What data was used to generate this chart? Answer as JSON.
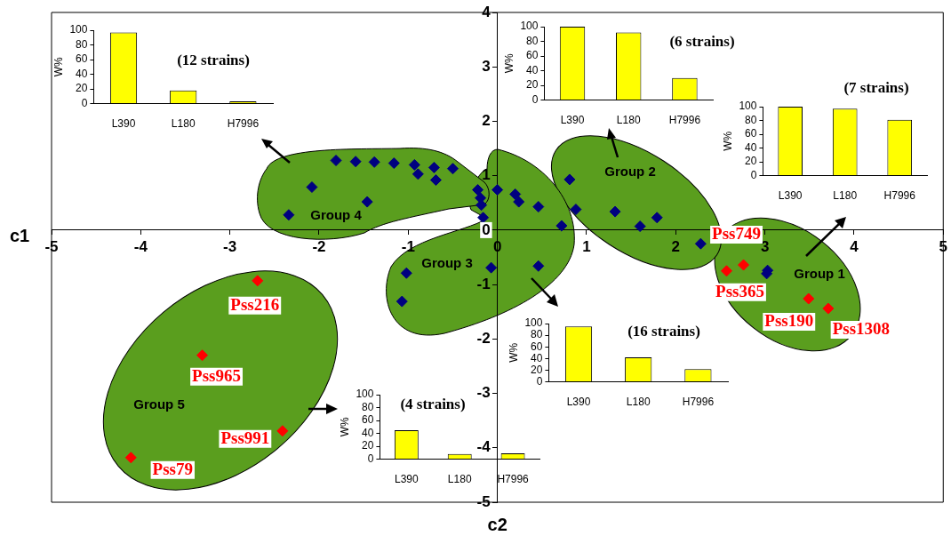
{
  "chart_data": [
    {
      "type": "scatter",
      "xlabel": "c2",
      "ylabel": "c1",
      "xlim": [
        -5,
        5
      ],
      "ylim": [
        -5,
        4
      ],
      "xticks": [
        -5,
        -4,
        -3,
        -2,
        -1,
        0,
        1,
        2,
        3,
        4,
        5
      ],
      "yticks": [
        -5,
        -4,
        -3,
        -2,
        -1,
        0,
        1,
        2,
        3,
        4
      ],
      "marker": "diamond",
      "series": [
        {
          "color": "#000080",
          "x": [
            -2.34,
            -2.08,
            -1.81,
            -1.59,
            -1.38,
            -1.16,
            -1.46,
            -0.93,
            -0.89,
            -0.71,
            -0.69,
            -0.5,
            -0.22,
            -0.19,
            -0.16,
            -0.18,
            0.0,
            0.2,
            0.24,
            0.46,
            0.72,
            0.81,
            0.88,
            1.32,
            1.6,
            1.79,
            2.28,
            -0.07,
            0.46,
            -1.02,
            -1.07,
            3.03,
            3.02
          ],
          "values": [
            0.28,
            0.79,
            1.28,
            1.26,
            1.25,
            1.23,
            0.52,
            1.2,
            1.03,
            1.15,
            0.92,
            1.13,
            0.74,
            0.59,
            0.23,
            0.46,
            0.74,
            0.66,
            0.52,
            0.43,
            0.08,
            0.93,
            0.38,
            0.34,
            0.07,
            0.23,
            -0.25,
            -0.69,
            -0.66,
            -0.79,
            -1.31,
            -0.74,
            -0.8
          ]
        },
        {
          "color": "#ff0000",
          "x": [
            2.57,
            2.76,
            3.49,
            3.71,
            -2.69,
            -3.31,
            -2.41,
            -4.11
          ],
          "values": [
            -0.75,
            -0.64,
            -1.26,
            -1.44,
            -0.93,
            -2.3,
            -3.69,
            -4.18
          ],
          "value_labels": [
            "Pss365",
            "Pss749",
            "Pss190",
            "Pss1308",
            "Pss216",
            "Pss965",
            "Pss991",
            "Pss79"
          ]
        }
      ],
      "annotations": [
        "Group 1",
        "Group 2",
        "Group 3",
        "Group 4",
        "Group 5"
      ]
    },
    {
      "type": "bar",
      "categories": [
        "L390",
        "L180",
        "H7996"
      ],
      "values": [
        97,
        18,
        3
      ],
      "color": "#ffff00",
      "ylabel": "W%",
      "ylim": [
        0,
        100
      ],
      "yticks": [
        0,
        20,
        40,
        60,
        80,
        100
      ],
      "annotations": [
        "(12 strains)"
      ]
    },
    {
      "type": "bar",
      "categories": [
        "L390",
        "L180",
        "H7996"
      ],
      "values": [
        100,
        92,
        30
      ],
      "color": "#ffff00",
      "ylabel": "W%",
      "ylim": [
        0,
        100
      ],
      "yticks": [
        0,
        20,
        40,
        60,
        80,
        100
      ],
      "annotations": [
        "(6 strains)"
      ]
    },
    {
      "type": "bar",
      "categories": [
        "L390",
        "L180",
        "H7996"
      ],
      "values": [
        100,
        97,
        81
      ],
      "color": "#ffff00",
      "ylabel": "W%",
      "ylim": [
        0,
        100
      ],
      "yticks": [
        0,
        20,
        40,
        60,
        80,
        100
      ],
      "annotations": [
        "(7 strains)"
      ]
    },
    {
      "type": "bar",
      "categories": [
        "L390",
        "L180",
        "H7996"
      ],
      "values": [
        95,
        42,
        22
      ],
      "color": "#ffff00",
      "ylabel": "W%",
      "ylim": [
        0,
        100
      ],
      "yticks": [
        0,
        20,
        40,
        60,
        80,
        100
      ],
      "annotations": [
        "(16 strains)"
      ]
    },
    {
      "type": "bar",
      "categories": [
        "L390",
        "L180",
        "H7996"
      ],
      "values": [
        45,
        8,
        9
      ],
      "color": "#ffff00",
      "ylabel": "W%",
      "ylim": [
        0,
        100
      ],
      "yticks": [
        0,
        20,
        40,
        60,
        80,
        100
      ],
      "annotations": [
        "(4 strains)"
      ]
    }
  ]
}
